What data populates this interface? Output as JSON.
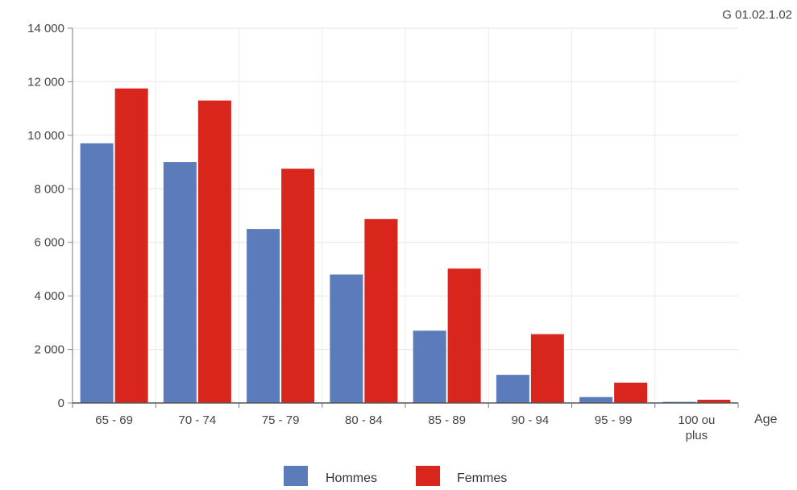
{
  "chart_data": {
    "type": "bar",
    "code_label": "G 01.02.1.02",
    "title": "",
    "xlabel": "Age",
    "ylabel": "",
    "ylim": [
      0,
      14000
    ],
    "y_ticks": [
      0,
      2000,
      4000,
      6000,
      8000,
      10000,
      12000,
      14000
    ],
    "y_tick_labels": [
      "0",
      "2 000",
      "4 000",
      "6 000",
      "8 000",
      "10 000",
      "12 000",
      "14 000"
    ],
    "categories": [
      [
        "65 - 69"
      ],
      [
        "70 - 74"
      ],
      [
        "75 - 79"
      ],
      [
        "80 - 84"
      ],
      [
        "85 - 89"
      ],
      [
        "90 - 94"
      ],
      [
        "95 - 99"
      ],
      [
        "100 ou",
        "plus"
      ]
    ],
    "series": [
      {
        "name": "Hommes",
        "color": "#5b7bba",
        "values": [
          9700,
          9000,
          6500,
          4800,
          2700,
          1050,
          220,
          40
        ]
      },
      {
        "name": "Femmes",
        "color": "#d9261c",
        "values": [
          11750,
          11300,
          8750,
          6870,
          5020,
          2570,
          760,
          120
        ]
      }
    ],
    "grid": true,
    "legend_position": "bottom-center"
  }
}
